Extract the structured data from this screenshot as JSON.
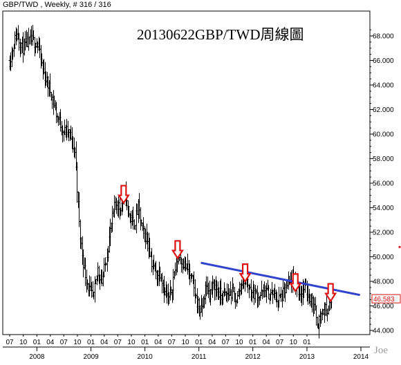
{
  "header": {
    "text": "GBP/TWD , Weekly, # 316 / 316"
  },
  "title": "20130622GBP/TWD周線圖",
  "watermark": "Joe",
  "colors": {
    "price": "#000000",
    "trendline": "#3344cc",
    "arrows": "#dd1111",
    "last_price": "#dd1111"
  },
  "chart_data": {
    "type": "ohlc",
    "title": "20130622GBP/TWD周線圖",
    "instrument": "GBP/TWD",
    "timeframe": "Weekly",
    "ylim": [
      43.7,
      69.4
    ],
    "y_ticks": [
      "44.000",
      "46.000",
      "48.000",
      "50.000",
      "52.000",
      "54.000",
      "56.000",
      "58.000",
      "60.000",
      "62.000",
      "64.000",
      "66.000",
      "68.000"
    ],
    "last_price": "46.583",
    "x_month_labels": [
      "07",
      "10",
      "01",
      "04",
      "07",
      "10",
      "01",
      "04",
      "07",
      "10",
      "01",
      "04",
      "07",
      "10",
      "01",
      "04",
      "07",
      "10",
      "01",
      "04",
      "07",
      "10",
      "01"
    ],
    "x_year_labels": [
      "2008",
      "2009",
      "2010",
      "2011",
      "2012",
      "2013",
      "2014"
    ],
    "series": [
      {
        "points": [
          [
            "2007-07-01",
            66.0
          ],
          [
            "2007-08-15",
            68.2
          ],
          [
            "2007-10-01",
            67.0
          ],
          [
            "2007-11-15",
            67.6
          ],
          [
            "2008-01-01",
            67.5
          ],
          [
            "2008-02-15",
            65.0
          ],
          [
            "2008-04-01",
            63.5
          ],
          [
            "2008-05-15",
            61.5
          ],
          [
            "2008-07-01",
            60.2
          ],
          [
            "2008-08-01",
            60.2
          ],
          [
            "2008-09-15",
            58.5
          ],
          [
            "2008-10-15",
            52.0
          ],
          [
            "2008-11-15",
            49.0
          ],
          [
            "2008-12-15",
            47.5
          ],
          [
            "2009-01-15",
            46.5
          ],
          [
            "2009-02-15",
            49.0
          ],
          [
            "2009-03-15",
            48.0
          ],
          [
            "2009-04-15",
            50.0
          ],
          [
            "2009-05-15",
            52.5
          ],
          [
            "2009-06-15",
            54.5
          ],
          [
            "2009-07-15",
            54.0
          ],
          [
            "2009-08-15",
            55.0
          ],
          [
            "2009-09-15",
            53.5
          ],
          [
            "2009-10-15",
            52.5
          ],
          [
            "2009-11-15",
            54.0
          ],
          [
            "2009-12-15",
            52.0
          ],
          [
            "2010-01-15",
            51.5
          ],
          [
            "2010-02-15",
            49.5
          ],
          [
            "2010-03-15",
            48.5
          ],
          [
            "2010-04-15",
            48.8
          ],
          [
            "2010-05-15",
            47.0
          ],
          [
            "2010-06-15",
            46.5
          ],
          [
            "2010-07-15",
            48.5
          ],
          [
            "2010-08-15",
            50.2
          ],
          [
            "2010-09-15",
            49.5
          ],
          [
            "2010-10-15",
            49.0
          ],
          [
            "2010-11-15",
            48.0
          ],
          [
            "2010-12-15",
            46.5
          ],
          [
            "2011-01-15",
            45.5
          ],
          [
            "2011-02-15",
            47.5
          ],
          [
            "2011-03-15",
            47.0
          ],
          [
            "2011-04-15",
            47.8
          ],
          [
            "2011-05-15",
            47.0
          ],
          [
            "2011-06-15",
            46.8
          ],
          [
            "2011-07-15",
            47.0
          ],
          [
            "2011-08-15",
            47.0
          ],
          [
            "2011-09-15",
            46.5
          ],
          [
            "2011-10-15",
            48.0
          ],
          [
            "2011-11-15",
            48.2
          ],
          [
            "2011-12-15",
            47.2
          ],
          [
            "2012-01-15",
            47.0
          ],
          [
            "2012-02-15",
            46.8
          ],
          [
            "2012-03-15",
            47.2
          ],
          [
            "2012-04-15",
            47.0
          ],
          [
            "2012-05-15",
            47.0
          ],
          [
            "2012-06-15",
            46.5
          ],
          [
            "2012-07-15",
            46.8
          ],
          [
            "2012-08-15",
            47.5
          ],
          [
            "2012-09-15",
            48.0
          ],
          [
            "2012-10-15",
            47.8
          ],
          [
            "2012-11-15",
            47.0
          ],
          [
            "2012-12-15",
            47.5
          ],
          [
            "2013-01-15",
            46.8
          ],
          [
            "2013-02-15",
            46.0
          ],
          [
            "2013-03-15",
            44.6
          ],
          [
            "2013-04-15",
            45.5
          ],
          [
            "2013-05-15",
            45.8
          ],
          [
            "2013-06-01",
            46.0
          ],
          [
            "2013-06-22",
            46.583
          ]
        ]
      }
    ],
    "trendline": {
      "start": [
        "2011-01-20",
        49.5
      ],
      "end": [
        "2013-12-20",
        46.9
      ]
    },
    "annotations": [
      {
        "type": "arrow-down",
        "date": "2009-08-10",
        "value": 55.8
      },
      {
        "type": "arrow-down",
        "date": "2010-08-10",
        "value": 51.3
      },
      {
        "type": "arrow-down",
        "date": "2011-11-10",
        "value": 49.4
      },
      {
        "type": "arrow-down",
        "date": "2012-10-15",
        "value": 48.6
      },
      {
        "type": "arrow-down",
        "date": "2013-06-10",
        "value": 47.8
      }
    ]
  }
}
